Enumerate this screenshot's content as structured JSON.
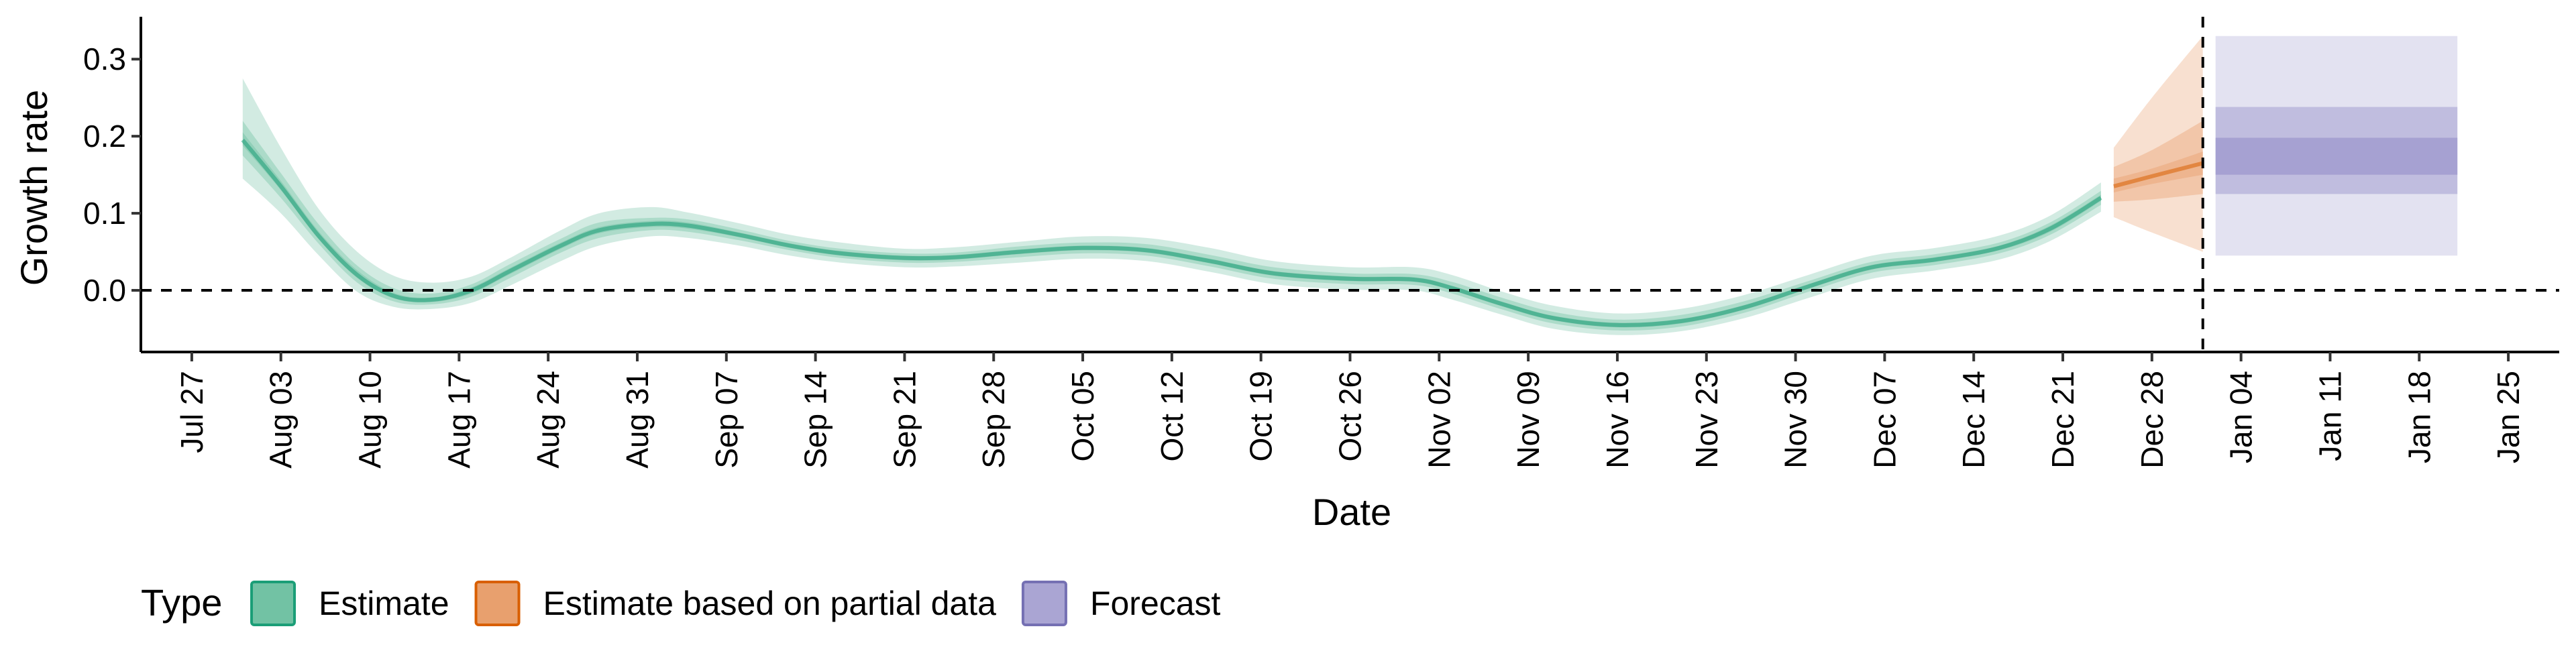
{
  "chart_data": {
    "type": "area",
    "xlabel": "Date",
    "ylabel": "Growth rate",
    "x_type": "date",
    "xlim": [
      "2020-07-23",
      "2021-01-29"
    ],
    "ylim": [
      -0.08,
      0.355
    ],
    "x_ticks": [
      {
        "date": "2020-07-27",
        "label": "Jul 27"
      },
      {
        "date": "2020-08-03",
        "label": "Aug 03"
      },
      {
        "date": "2020-08-10",
        "label": "Aug 10"
      },
      {
        "date": "2020-08-17",
        "label": "Aug 17"
      },
      {
        "date": "2020-08-24",
        "label": "Aug 24"
      },
      {
        "date": "2020-08-31",
        "label": "Aug 31"
      },
      {
        "date": "2020-09-07",
        "label": "Sep 07"
      },
      {
        "date": "2020-09-14",
        "label": "Sep 14"
      },
      {
        "date": "2020-09-21",
        "label": "Sep 21"
      },
      {
        "date": "2020-09-28",
        "label": "Sep 28"
      },
      {
        "date": "2020-10-05",
        "label": "Oct 05"
      },
      {
        "date": "2020-10-12",
        "label": "Oct 12"
      },
      {
        "date": "2020-10-19",
        "label": "Oct 19"
      },
      {
        "date": "2020-10-26",
        "label": "Oct 26"
      },
      {
        "date": "2020-11-02",
        "label": "Nov 02"
      },
      {
        "date": "2020-11-09",
        "label": "Nov 09"
      },
      {
        "date": "2020-11-16",
        "label": "Nov 16"
      },
      {
        "date": "2020-11-23",
        "label": "Nov 23"
      },
      {
        "date": "2020-11-30",
        "label": "Nov 30"
      },
      {
        "date": "2020-12-07",
        "label": "Dec 07"
      },
      {
        "date": "2020-12-14",
        "label": "Dec 14"
      },
      {
        "date": "2020-12-21",
        "label": "Dec 21"
      },
      {
        "date": "2020-12-28",
        "label": "Dec 28"
      },
      {
        "date": "2021-01-04",
        "label": "Jan 04"
      },
      {
        "date": "2021-01-11",
        "label": "Jan 11"
      },
      {
        "date": "2021-01-18",
        "label": "Jan 18"
      },
      {
        "date": "2021-01-25",
        "label": "Jan 25"
      }
    ],
    "y_ticks": [
      {
        "value": 0.0,
        "label": "0.0"
      },
      {
        "value": 0.1,
        "label": "0.1"
      },
      {
        "value": 0.2,
        "label": "0.2"
      },
      {
        "value": 0.3,
        "label": "0.3"
      }
    ],
    "reference_lines": [
      {
        "axis": "y",
        "value": 0,
        "style": "dashed"
      },
      {
        "axis": "x",
        "value": "2021-01-01",
        "style": "dashed"
      }
    ],
    "legend": {
      "title": "Type",
      "position": "bottom-left",
      "entries": [
        {
          "label": "Estimate",
          "fill": "#72c2a4",
          "stroke": "#1b9e77"
        },
        {
          "label": "Estimate based on partial data",
          "fill": "#e8a06e",
          "stroke": "#d95f02"
        },
        {
          "label": "Forecast",
          "fill": "#aaa5d3",
          "stroke": "#7570b3"
        }
      ]
    },
    "series": [
      {
        "name": "Estimate",
        "color": "#1b9e77",
        "columns": [
          "date",
          "median",
          "lower_90",
          "upper_90",
          "lower_50",
          "upper_50",
          "lower_20",
          "upper_20"
        ],
        "points": [
          [
            "2020-07-31",
            0.195,
            0.145,
            0.275,
            0.175,
            0.22,
            0.188,
            0.205
          ],
          [
            "2020-08-03",
            0.135,
            0.1,
            0.185,
            0.12,
            0.152,
            0.13,
            0.142
          ],
          [
            "2020-08-06",
            0.07,
            0.045,
            0.105,
            0.06,
            0.085,
            0.066,
            0.076
          ],
          [
            "2020-08-09",
            0.02,
            -0.002,
            0.05,
            0.01,
            0.032,
            0.016,
            0.026
          ],
          [
            "2020-08-12",
            -0.008,
            -0.022,
            0.018,
            -0.015,
            0.002,
            -0.011,
            -0.004
          ],
          [
            "2020-08-15",
            -0.012,
            -0.024,
            0.01,
            -0.018,
            -0.004,
            -0.015,
            -0.009
          ],
          [
            "2020-08-18",
            0.0,
            -0.016,
            0.018,
            -0.008,
            0.008,
            -0.004,
            0.004
          ],
          [
            "2020-08-21",
            0.025,
            0.006,
            0.042,
            0.016,
            0.034,
            0.021,
            0.029
          ],
          [
            "2020-08-25",
            0.058,
            0.038,
            0.078,
            0.049,
            0.067,
            0.054,
            0.062
          ],
          [
            "2020-08-28",
            0.078,
            0.058,
            0.1,
            0.068,
            0.088,
            0.074,
            0.082
          ],
          [
            "2020-09-01",
            0.086,
            0.07,
            0.108,
            0.078,
            0.094,
            0.082,
            0.09
          ],
          [
            "2020-09-04",
            0.084,
            0.068,
            0.101,
            0.076,
            0.092,
            0.08,
            0.088
          ],
          [
            "2020-09-08",
            0.072,
            0.058,
            0.087,
            0.065,
            0.079,
            0.069,
            0.075
          ],
          [
            "2020-09-12",
            0.058,
            0.045,
            0.072,
            0.052,
            0.064,
            0.055,
            0.061
          ],
          [
            "2020-09-16",
            0.048,
            0.036,
            0.062,
            0.042,
            0.054,
            0.045,
            0.051
          ],
          [
            "2020-09-21",
            0.042,
            0.03,
            0.054,
            0.036,
            0.048,
            0.039,
            0.045
          ],
          [
            "2020-09-25",
            0.043,
            0.031,
            0.056,
            0.037,
            0.049,
            0.04,
            0.046
          ],
          [
            "2020-09-30",
            0.05,
            0.036,
            0.063,
            0.043,
            0.057,
            0.047,
            0.053
          ],
          [
            "2020-10-05",
            0.055,
            0.041,
            0.07,
            0.048,
            0.062,
            0.052,
            0.058
          ],
          [
            "2020-10-10",
            0.052,
            0.038,
            0.068,
            0.045,
            0.06,
            0.049,
            0.055
          ],
          [
            "2020-10-15",
            0.038,
            0.024,
            0.055,
            0.031,
            0.046,
            0.035,
            0.041
          ],
          [
            "2020-10-20",
            0.022,
            0.008,
            0.038,
            0.015,
            0.03,
            0.019,
            0.025
          ],
          [
            "2020-10-26",
            0.015,
            0.001,
            0.03,
            0.008,
            0.022,
            0.012,
            0.018
          ],
          [
            "2020-10-31",
            0.014,
            0.0,
            0.03,
            0.007,
            0.021,
            0.011,
            0.017
          ],
          [
            "2020-11-03",
            0.003,
            -0.012,
            0.02,
            -0.004,
            0.011,
            0.0,
            0.006
          ],
          [
            "2020-11-07",
            -0.018,
            -0.032,
            -0.002,
            -0.025,
            -0.01,
            -0.021,
            -0.015
          ],
          [
            "2020-11-11",
            -0.036,
            -0.05,
            -0.02,
            -0.043,
            -0.028,
            -0.039,
            -0.033
          ],
          [
            "2020-11-16",
            -0.045,
            -0.058,
            -0.03,
            -0.052,
            -0.038,
            -0.048,
            -0.042
          ],
          [
            "2020-11-21",
            -0.04,
            -0.053,
            -0.024,
            -0.047,
            -0.032,
            -0.043,
            -0.037
          ],
          [
            "2020-11-26",
            -0.022,
            -0.036,
            -0.006,
            -0.029,
            -0.014,
            -0.025,
            -0.019
          ],
          [
            "2020-12-01",
            0.005,
            -0.01,
            0.02,
            -0.002,
            0.012,
            0.002,
            0.008
          ],
          [
            "2020-12-06",
            0.03,
            0.015,
            0.045,
            0.023,
            0.037,
            0.027,
            0.033
          ],
          [
            "2020-12-11",
            0.04,
            0.026,
            0.055,
            0.033,
            0.047,
            0.037,
            0.043
          ],
          [
            "2020-12-16",
            0.055,
            0.04,
            0.071,
            0.048,
            0.062,
            0.052,
            0.058
          ],
          [
            "2020-12-20",
            0.08,
            0.064,
            0.097,
            0.072,
            0.088,
            0.076,
            0.084
          ],
          [
            "2020-12-24",
            0.12,
            0.102,
            0.14,
            0.111,
            0.129,
            0.116,
            0.124
          ]
        ]
      },
      {
        "name": "Estimate based on partial data",
        "color": "#d95f02",
        "columns": [
          "date",
          "median",
          "lower_90",
          "upper_90",
          "lower_50",
          "upper_50",
          "lower_20",
          "upper_20"
        ],
        "points": [
          [
            "2020-12-25",
            0.135,
            0.095,
            0.185,
            0.115,
            0.16,
            0.127,
            0.145
          ],
          [
            "2020-12-28",
            0.148,
            0.075,
            0.25,
            0.118,
            0.182,
            0.138,
            0.158
          ],
          [
            "2021-01-01",
            0.165,
            0.05,
            0.33,
            0.125,
            0.22,
            0.15,
            0.18
          ]
        ]
      },
      {
        "name": "Forecast",
        "color": "#7570b3",
        "columns": [
          "date",
          "median",
          "lower_90",
          "upper_90",
          "lower_50",
          "upper_50",
          "lower_20",
          "upper_20"
        ],
        "points": [
          [
            "2021-01-02",
            0.18,
            0.045,
            0.33,
            0.125,
            0.238,
            0.15,
            0.198
          ],
          [
            "2021-01-21",
            0.18,
            0.045,
            0.33,
            0.125,
            0.238,
            0.15,
            0.198
          ]
        ]
      }
    ]
  }
}
